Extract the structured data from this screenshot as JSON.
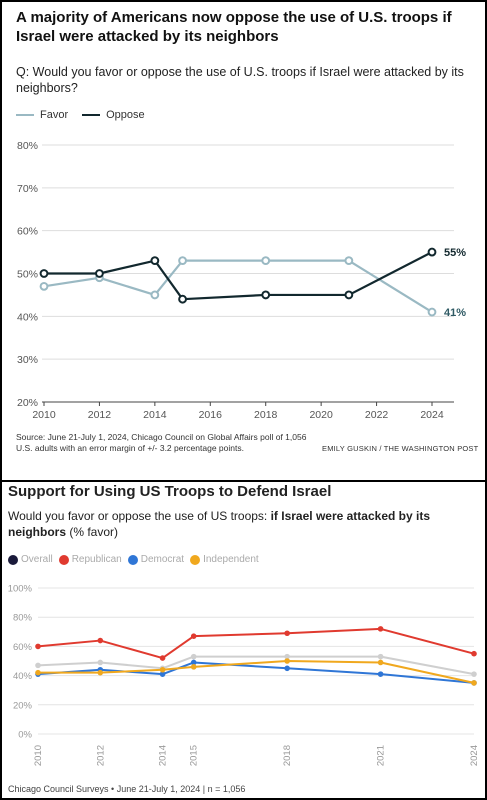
{
  "top_panel": {
    "title": "A majority of Americans now oppose the use of U.S. troops if Israel were attacked by its neighbors",
    "question": "Q: Would you favor or oppose the use of U.S. troops if Israel were attacked by its neighbors?",
    "source": "Source: June 21-July 1, 2024, Chicago Council on Global Affairs poll of 1,056 U.S. adults with an error margin of +/- 3.2 percentage points.",
    "credit": "EMILY GUSKIN / THE WASHINGTON POST"
  },
  "bottom_panel": {
    "title": "Support for Using US Troops to Defend Israel",
    "question_plain": "Would you favor or oppose the use of US troops: ",
    "question_bold": "if Israel were attacked by its neighbors",
    "question_suffix": " (% favor)",
    "source": "Chicago Council Surveys • June 21-July 1, 2024 | n = 1,056"
  },
  "chart_data": [
    {
      "type": "line",
      "title": "A majority of Americans now oppose the use of U.S. troops if Israel were attacked by its neighbors",
      "xlabel": "",
      "ylabel": "",
      "ylim": [
        20,
        80
      ],
      "y_ticks": [
        "20%",
        "30%",
        "40%",
        "50%",
        "60%",
        "70%",
        "80%"
      ],
      "y_tick_values": [
        20,
        30,
        40,
        50,
        60,
        70,
        80
      ],
      "x_ticks": [
        "2010",
        "2012",
        "2014",
        "2016",
        "2018",
        "2020",
        "2022",
        "2024"
      ],
      "x_tick_values": [
        2010,
        2012,
        2014,
        2016,
        2018,
        2020,
        2022,
        2024
      ],
      "xlim": [
        2010,
        2024
      ],
      "grid": true,
      "legend_position": "top-left",
      "series": [
        {
          "name": "Favor",
          "color": "#9ab9c3",
          "x": [
            2010,
            2012,
            2014,
            2015,
            2018,
            2021,
            2024
          ],
          "values": [
            47,
            49,
            45,
            53,
            53,
            53,
            41
          ],
          "end_label": "41%"
        },
        {
          "name": "Oppose",
          "color": "#12282e",
          "x": [
            2010,
            2012,
            2014,
            2015,
            2018,
            2021,
            2024
          ],
          "values": [
            50,
            50,
            53,
            44,
            45,
            45,
            55
          ],
          "end_label": "55%"
        }
      ]
    },
    {
      "type": "line",
      "title": "Support for Using US Troops to Defend Israel",
      "xlabel": "",
      "ylabel": "",
      "ylim": [
        0,
        100
      ],
      "y_ticks": [
        "0%",
        "20%",
        "40%",
        "60%",
        "80%",
        "100%"
      ],
      "y_tick_values": [
        0,
        20,
        40,
        60,
        80,
        100
      ],
      "x_ticks": [
        "2010",
        "2012",
        "2014",
        "2015",
        "2018",
        "2021",
        "2024"
      ],
      "x_tick_values": [
        2010,
        2012,
        2014,
        2015,
        2018,
        2021,
        2024
      ],
      "xlim": [
        2010,
        2024
      ],
      "grid": true,
      "legend_position": "top-left",
      "series": [
        {
          "name": "Overall",
          "color": "#1a1a3a",
          "line_color": "#cfcfcf",
          "x": [
            2010,
            2012,
            2014,
            2015,
            2018,
            2021,
            2024
          ],
          "values": [
            47,
            49,
            45,
            53,
            53,
            53,
            41
          ]
        },
        {
          "name": "Republican",
          "color": "#e03a2f",
          "x": [
            2010,
            2012,
            2014,
            2015,
            2018,
            2021,
            2024
          ],
          "values": [
            60,
            64,
            52,
            67,
            69,
            72,
            55
          ]
        },
        {
          "name": "Democrat",
          "color": "#2f76d6",
          "x": [
            2010,
            2012,
            2014,
            2015,
            2018,
            2021,
            2024
          ],
          "values": [
            41,
            44,
            41,
            49,
            45,
            41,
            35
          ]
        },
        {
          "name": "Independent",
          "color": "#f0a81e",
          "x": [
            2010,
            2012,
            2014,
            2015,
            2018,
            2021,
            2024
          ],
          "values": [
            42,
            42,
            44,
            46,
            50,
            49,
            35
          ]
        }
      ]
    }
  ]
}
